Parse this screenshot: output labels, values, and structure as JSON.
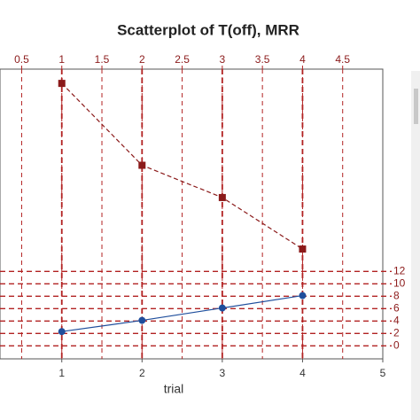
{
  "chart_data": {
    "type": "scatter",
    "title": "Scatterplot of T(off), MRR",
    "xlabel": "trial",
    "x": [
      1,
      2,
      3,
      4
    ],
    "xlim": [
      0.23,
      5
    ],
    "xticks": [
      1,
      2,
      3,
      4,
      5
    ],
    "x2lim": [
      0.23,
      5
    ],
    "x2ticks": [
      0.5,
      1,
      1.5,
      2,
      2.5,
      3,
      3.5,
      4,
      4.5
    ],
    "ylim": [
      -2.1,
      44.6
    ],
    "yticks": [
      0,
      2,
      4,
      6,
      8,
      10,
      12
    ],
    "grid": true,
    "series": [
      {
        "color": "#8b1a1a",
        "marker": "square",
        "linestyle": "dashed",
        "values": [
          42.3,
          29.1,
          23.9,
          15.6
        ]
      },
      {
        "color": "#1f4e9c",
        "marker": "circle",
        "linestyle": "solid",
        "values": [
          2.3,
          4.1,
          6.1,
          8.1
        ]
      }
    ]
  }
}
